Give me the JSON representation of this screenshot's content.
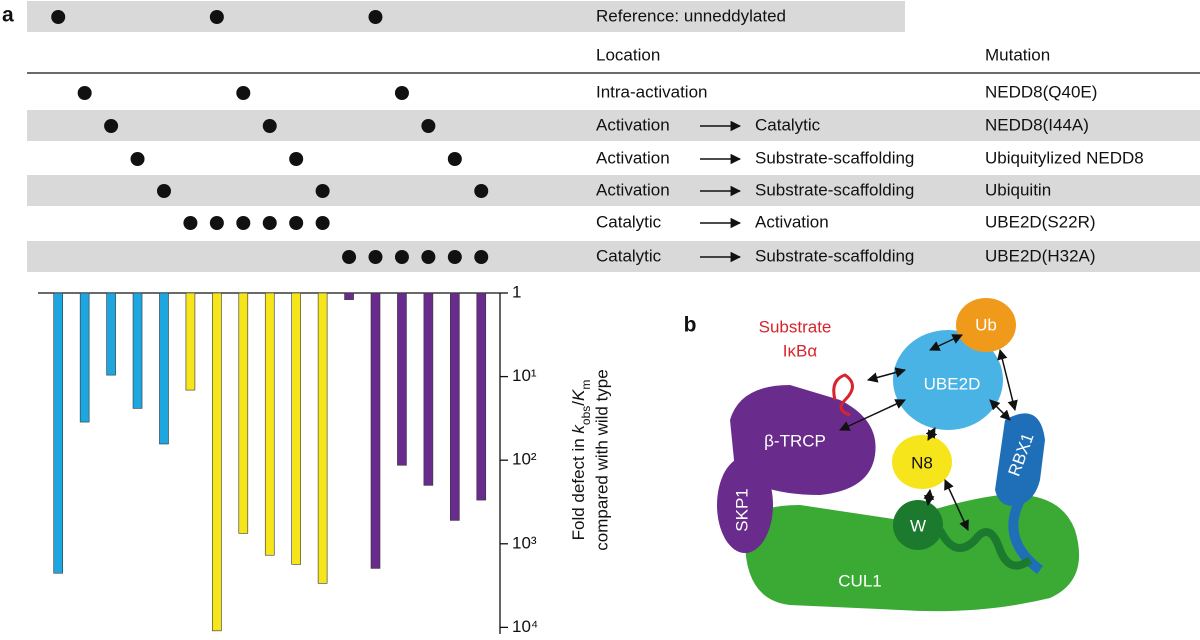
{
  "panel_labels": {
    "a": "a",
    "b": "b"
  },
  "table": {
    "reference": "Reference: unneddylated",
    "header": {
      "location": "Location",
      "mutation": "Mutation"
    },
    "rows": [
      {
        "from": "Intra-activation",
        "to": null,
        "mutation": "NEDD8(Q40E)"
      },
      {
        "from": "Activation",
        "to": "Catalytic",
        "mutation": "NEDD8(I44A)"
      },
      {
        "from": "Activation",
        "to": "Substrate-scaffolding",
        "mutation": "Ubiquitylized NEDD8"
      },
      {
        "from": "Activation",
        "to": "Substrate-scaffolding",
        "mutation": "Ubiquitin"
      },
      {
        "from": "Catalytic",
        "to": "Activation",
        "mutation": "UBE2D(S22R)"
      },
      {
        "from": "Catalytic",
        "to": "Substrate-scaffolding",
        "mutation": "UBE2D(H32A)"
      }
    ]
  },
  "chart_data": {
    "type": "bar",
    "orientation": "down",
    "log_scale": true,
    "ylabel": [
      "Fold defect in ",
      "k",
      "obs",
      "/",
      "K",
      "m"
    ],
    "ylabel_line2": "compared with wild type",
    "categories": [
      null,
      null,
      null,
      null,
      null,
      null,
      null,
      null,
      null,
      null,
      null,
      null,
      null,
      null,
      null,
      null,
      null
    ],
    "values": [
      2250,
      35,
      9.6,
      24,
      64,
      14.5,
      11000,
      750,
      1370,
      1760,
      2970,
      1.2,
      1970,
      115,
      200,
      525,
      300
    ],
    "colors": [
      "#1ea6e0",
      "#1ea6e0",
      "#1ea6e0",
      "#1ea6e0",
      "#1ea6e0",
      "#f7e51c",
      "#f7e51c",
      "#f7e51c",
      "#f7e51c",
      "#f7e51c",
      "#f7e51c",
      "#6a2c8c",
      "#6a2c8c",
      "#6a2c8c",
      "#6a2c8c",
      "#6a2c8c",
      "#6a2c8c"
    ],
    "ylim": [
      1,
      12000
    ],
    "yticks": [
      1,
      {
        "value": 10,
        "label": "10¹"
      },
      {
        "value": 100,
        "label": "10²"
      },
      {
        "value": 1000,
        "label": "10³"
      },
      {
        "value": 10000,
        "label": "10⁴"
      }
    ]
  },
  "diagram": {
    "substrate": "Substrate",
    "ikba": "IκBα",
    "ub": "Ub",
    "ube2d": "UBE2D",
    "btrcp": "β-TRCP",
    "n8": "N8",
    "rbx1": "RBX1",
    "skp1": "SKP1",
    "w": "W",
    "cul1": "CUL1"
  }
}
